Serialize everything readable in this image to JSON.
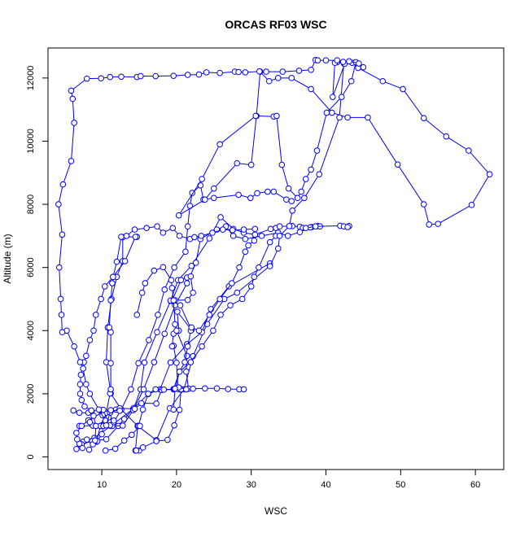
{
  "chart_data": {
    "type": "scatter",
    "title": "ORCAS RF03 WSC",
    "xlabel": "WSC",
    "ylabel": "Altitude (m)",
    "xlim": [
      2.8,
      63.8
    ],
    "ylim": [
      -400,
      12950
    ],
    "x_ticks": [
      10,
      20,
      30,
      40,
      50,
      60
    ],
    "y_ticks": [
      0,
      2000,
      4000,
      6000,
      8000,
      10000,
      12000
    ],
    "marker": "open-circle",
    "connected": true,
    "grid": false,
    "legend": "none",
    "colors": {
      "series": "#0000ff",
      "frame": "#000000"
    },
    "series": [
      {
        "x": [
          15.0,
          14.5,
          14.8,
          17.3,
          19.1,
          21.0,
          22.2,
          24.1,
          26.4,
          28.1,
          32.5
        ],
        "y": [
          200,
          200,
          980,
          530,
          1540,
          2140,
          3190,
          4210,
          5000,
          5200,
          6050
        ]
      },
      {
        "x": [
          7.5,
          8.0,
          9.0,
          11.2,
          14.2,
          16.2,
          17.8,
          19.2,
          21.4,
          23.4,
          24.6,
          27.0,
          32.5
        ],
        "y": [
          480,
          550,
          600,
          980,
          1520,
          1990,
          2140,
          2990,
          3570,
          3950,
          4680,
          5400,
          6130
        ]
      },
      {
        "x": [
          6.6,
          7.3,
          8.7,
          10.6,
          12.2,
          13.0,
          14.3,
          15.2,
          15.7,
          17.4,
          19.2,
          20.2,
          22.0,
          24.4,
          25.9,
          27.6,
          29.0,
          30.5,
          32.6,
          33.3,
          33.8,
          35.5,
          36.5,
          38.1,
          38.9,
          39.2,
          37.9,
          36.9
        ],
        "y": [
          250,
          400,
          500,
          560,
          980,
          1200,
          1550,
          2140,
          2990,
          3950,
          4940,
          5600,
          6050,
          6920,
          7590,
          7220,
          7100,
          7040,
          7220,
          7250,
          7300,
          7310,
          7290,
          7280,
          7310,
          7300,
          7270,
          7250
        ]
      },
      {
        "x": [
          7.0,
          8.8,
          10.0,
          11.4,
          12.8,
          14.2,
          15.6,
          17.0,
          18.4,
          19.8,
          21.4,
          22.6,
          23.2,
          25.4,
          26.6,
          27.6,
          29.2,
          31.4,
          33.6,
          34.9,
          36.5,
          37.3,
          38.6,
          41.9,
          43.1,
          42.4,
          42.9
        ],
        "y": [
          980,
          990,
          1000,
          980,
          990,
          1480,
          2140,
          3000,
          3900,
          4800,
          5500,
          6150,
          6900,
          7200,
          7300,
          7000,
          6900,
          7000,
          7100,
          7000,
          7120,
          7250,
          7300,
          7320,
          7310,
          7300,
          7280
        ]
      },
      {
        "x": [
          14.8,
          12.6,
          11.2,
          10.6,
          10.8,
          11.3,
          12.0,
          12.8,
          12.8,
          14.7
        ],
        "y": [
          980,
          1500,
          2010,
          3000,
          4100,
          5000,
          5700,
          6200,
          6960,
          6970
        ]
      },
      {
        "x": [
          6.2,
          7.0,
          8.2,
          10.3,
          11.2,
          11.9
        ],
        "y": [
          1470,
          1400,
          1400,
          1400,
          1450,
          1500
        ]
      },
      {
        "x": [
          9.8,
          11.1,
          11.6,
          12.6,
          13.9,
          14.9,
          16.3,
          17.5,
          18.4,
          19.7,
          21.2,
          21.5,
          21.8,
          22.1,
          23.2,
          23.6,
          25.0,
          28.3,
          29.9,
          30.8,
          32.2,
          33.0,
          34.7,
          35.4
        ],
        "y": [
          980,
          1000,
          1100,
          1500,
          2140,
          2970,
          3700,
          4500,
          5300,
          6000,
          6500,
          7300,
          7950,
          8360,
          8600,
          8150,
          8200,
          8300,
          8200,
          8350,
          8400,
          8400,
          8150,
          8100
        ]
      },
      {
        "x": [
          9.3,
          9.8,
          10.6,
          11.1,
          11.2,
          11.2,
          11.2,
          11.0,
          11.2,
          11.4,
          11.5,
          12.0,
          12.6,
          13.3,
          14.4,
          16.0,
          17.4,
          18.2,
          19.5,
          20.4,
          21.8,
          22.4,
          23.3,
          24.8,
          26.2,
          27.5,
          29.0,
          30.5
        ],
        "y": [
          480,
          980,
          1400,
          2010,
          2140,
          2970,
          3950,
          4100,
          4960,
          5500,
          5700,
          6180,
          6970,
          7000,
          7200,
          7250,
          7300,
          7100,
          7250,
          7000,
          6900,
          6960,
          7000,
          7100,
          7200,
          7180,
          7200,
          7220
        ]
      },
      {
        "x": [
          7.4,
          7.0,
          6.7,
          6.6,
          7.3,
          8.2,
          10.2,
          11.1,
          12.4,
          14.4,
          15.3,
          17.3,
          18.0,
          19.6,
          20.4,
          20.2,
          20.0,
          19.6,
          19.4,
          19.6,
          20.3,
          20.1,
          22.0,
          20.5,
          19.4,
          20.6,
          21.4,
          21.9,
          22.2,
          21.5,
          19.8,
          19.2
        ],
        "y": [
          280,
          420,
          560,
          760,
          980,
          1160,
          1490,
          1400,
          1540,
          1520,
          1700,
          1690,
          2120,
          2140,
          2140,
          2150,
          2980,
          3520,
          3500,
          3900,
          4000,
          4600,
          4020,
          4800,
          4940,
          5600,
          5680,
          5720,
          5200,
          4970,
          4960,
          4950
        ]
      },
      {
        "x": [
          14.6,
          15.5,
          17.3,
          18.8,
          19.7,
          20.4,
          20.6,
          21.6,
          21.3,
          21.4,
          20.0,
          19.8,
          19.6,
          19.4,
          19.3,
          18.2,
          17.0,
          15.8,
          15.4,
          14.7
        ],
        "y": [
          200,
          300,
          500,
          540,
          1000,
          1490,
          2140,
          2160,
          2700,
          3200,
          4000,
          4200,
          4960,
          5350,
          5600,
          6010,
          5900,
          5500,
          5200,
          4500
        ]
      },
      {
        "x": [
          19.6,
          20.4,
          21.1,
          21.5,
          21.9,
          22.0,
          23.0,
          24.4,
          25.8,
          27.4,
          28.4,
          29.2,
          29.6,
          30.4
        ],
        "y": [
          2150,
          2700,
          3000,
          3500,
          4000,
          4100,
          4000,
          4500,
          5000,
          5500,
          6000,
          6500,
          6700,
          6850
        ]
      },
      {
        "x": [
          14.9,
          15.5,
          16.2,
          17.2,
          18.3,
          19.7,
          20.3,
          21.3,
          22.2,
          23.8,
          25.4,
          26.9,
          28.4,
          29.0
        ],
        "y": [
          980,
          1500,
          2000,
          2140,
          2130,
          2150,
          2200,
          2140,
          2160,
          2170,
          2170,
          2150,
          2140,
          2140
        ]
      },
      {
        "x": [
          19.6,
          19.8,
          20.4,
          21.9,
          23.4,
          24.9,
          25.9,
          27.2,
          28.8,
          30.0,
          30.4,
          31.0,
          32.5,
          33.3
        ],
        "y": [
          1500,
          2160,
          2700,
          3000,
          3500,
          4000,
          4500,
          4800,
          5000,
          5400,
          5700,
          6000,
          6800,
          7000
        ]
      },
      {
        "x": [
          32.5,
          33.6,
          33.8,
          35.1,
          35.5,
          37.1,
          39.1,
          41.8,
          42.4,
          41.5,
          41.2,
          40.9,
          42.5,
          43.5,
          44.3,
          47.6,
          50.3,
          53.1,
          56.1,
          59.1,
          61.9,
          59.5,
          55.0,
          53.8,
          53.1,
          49.6,
          45.6,
          42.9,
          40.8,
          38.0,
          35.4,
          33.6,
          32.4,
          31.2,
          30.7,
          30.0,
          28.1,
          25.0,
          23.8,
          20.3,
          23.4,
          25.8,
          30.6,
          33.0
        ],
        "y": [
          6040,
          6600,
          7000,
          7310,
          7800,
          8200,
          8950,
          10750,
          12460,
          12500,
          12480,
          11400,
          12450,
          12480,
          12320,
          11900,
          11650,
          10730,
          10150,
          9700,
          8950,
          7980,
          7380,
          7360,
          8000,
          9260,
          10750,
          10750,
          10900,
          11650,
          12000,
          12000,
          11900,
          12200,
          10800,
          9250,
          9300,
          8500,
          8150,
          7650,
          8800,
          9900,
          10800,
          10780
        ]
      },
      {
        "x": [
          33.4,
          34.1,
          35.0,
          36.2,
          36.7,
          37.3,
          38.0,
          38.8,
          40.1,
          42.1,
          43.4,
          44.0
        ],
        "y": [
          10800,
          9250,
          8500,
          8200,
          8400,
          8800,
          9100,
          9700,
          10900,
          11400,
          11900,
          12500
        ]
      },
      {
        "x": [
          14.5,
          13.1,
          11.5,
          10.4,
          9.9,
          9.2,
          8.9,
          8.4,
          7.9,
          7.6,
          7.2,
          7.1,
          7.1,
          7.3,
          7.7,
          8.6,
          9.3,
          10.1,
          10.9,
          11.6
        ],
        "y": [
          6970,
          6200,
          5700,
          5400,
          5000,
          4500,
          4000,
          3700,
          3200,
          3000,
          2600,
          2300,
          2000,
          1800,
          1600,
          1470,
          1400,
          1320,
          1250,
          1150
        ]
      },
      {
        "x": [
          10.5,
          9.6,
          8.4,
          7.9,
          7.5,
          7.1,
          6.3,
          5.3,
          4.7,
          4.6,
          4.5,
          4.3,
          4.7,
          4.2,
          4.8,
          5.9,
          6.3,
          6.1,
          5.9,
          8.0,
          9.9,
          11.1,
          12.6,
          14.7,
          15.2,
          17.2,
          19.6,
          21.5,
          23.0,
          24.0,
          25.8,
          27.8,
          28.3,
          29.2,
          31.1,
          32.0,
          34.2,
          36.4,
          38.0,
          38.6
        ],
        "y": [
          1150,
          1500,
          2000,
          2300,
          2800,
          3000,
          3500,
          4000,
          3950,
          4500,
          5000,
          6000,
          7040,
          8000,
          8630,
          9370,
          10580,
          11340,
          11600,
          11980,
          11990,
          12030,
          12040,
          12030,
          12060,
          12060,
          12070,
          12100,
          12110,
          12180,
          12160,
          12200,
          12190,
          12180,
          12210,
          12200,
          12200,
          12230,
          12260,
          12570
        ]
      },
      {
        "x": [
          38.9,
          40.0,
          41.5,
          42.3,
          43.1,
          44.4,
          45.0
        ],
        "y": [
          12560,
          12560,
          12560,
          12510,
          12530,
          12460,
          12340
        ]
      },
      {
        "x": [
          10.5,
          11.8,
          13.0,
          14.0,
          15.1
        ],
        "y": [
          200,
          260,
          520,
          700,
          980
        ]
      },
      {
        "x": [
          9.4,
          10.0,
          10.2,
          10.6,
          11.2,
          12.4
        ],
        "y": [
          500,
          720,
          980,
          1000,
          1480,
          1460
        ]
      },
      {
        "x": [
          8.3,
          8.8,
          9.1,
          9.2,
          8.9,
          8.4
        ],
        "y": [
          230,
          400,
          520,
          980,
          1300,
          1100
        ]
      }
    ]
  }
}
